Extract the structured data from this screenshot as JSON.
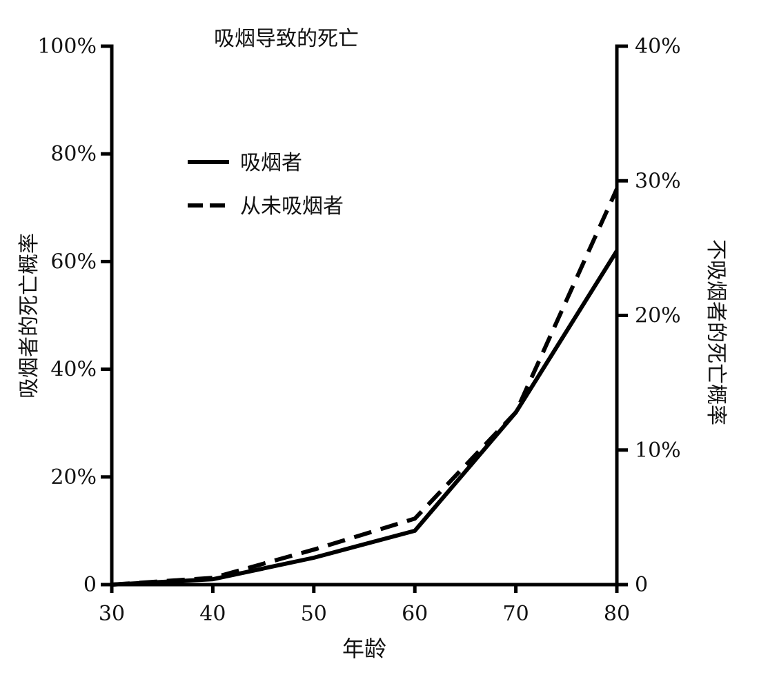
{
  "chart_data": {
    "type": "line",
    "title": "吸烟导致的死亡",
    "xlabel": "年龄",
    "ylabel_left": "吸烟者的死亡概率",
    "ylabel_right": "不吸烟者的死亡概率",
    "x": [
      30,
      40,
      50,
      60,
      70,
      80
    ],
    "xlim": [
      30,
      80
    ],
    "x_ticks": [
      "30",
      "40",
      "50",
      "60",
      "70",
      "80"
    ],
    "ylim_left": [
      0,
      100
    ],
    "ylim_right": [
      0,
      40
    ],
    "y_ticks_left": [
      {
        "value": 0,
        "label": "0"
      },
      {
        "value": 20,
        "label": "20%"
      },
      {
        "value": 40,
        "label": "40%"
      },
      {
        "value": 60,
        "label": "60%"
      },
      {
        "value": 80,
        "label": "80%"
      },
      {
        "value": 100,
        "label": "100%"
      }
    ],
    "y_ticks_right": [
      {
        "value": 0,
        "label": "0"
      },
      {
        "value": 10,
        "label": "10%"
      },
      {
        "value": 20,
        "label": "20%"
      },
      {
        "value": 30,
        "label": "30%"
      },
      {
        "value": 40,
        "label": "40%"
      }
    ],
    "legend_position": "top-left",
    "grid": false,
    "series": [
      {
        "name": "吸烟者",
        "axis": "left",
        "style": "solid",
        "color": "#000000",
        "values": [
          0,
          1,
          5,
          10,
          32,
          62
        ]
      },
      {
        "name": "从未吸烟者",
        "axis": "right",
        "style": "dashed",
        "color": "#000000",
        "values": [
          0,
          0.5,
          2.6,
          4.9,
          12.8,
          29.4
        ]
      }
    ]
  }
}
